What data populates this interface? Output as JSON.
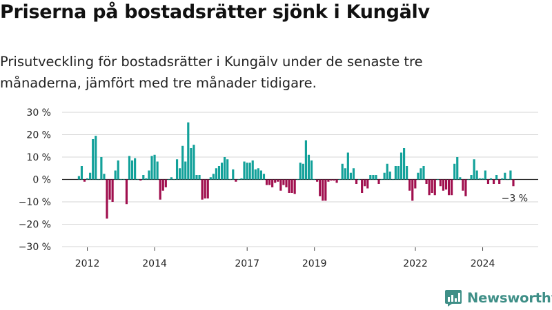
{
  "title": "Priserna på bostadsrätter sjönk i Kungälv",
  "subtitle": "Prisutveckling för bostadsrätter i Kungälv under de senaste tre månaderna, jämfört med tre månader tidigare.",
  "brand": {
    "name": "Newsworthy",
    "icon": "newsworthy-chart-icon"
  },
  "colors": {
    "positive": "#12a19a",
    "negative": "#a00f4e",
    "grid": "#d6d6d6",
    "zero_line": "#222222",
    "brand": "#3f8f87"
  },
  "chart_data": {
    "type": "bar",
    "y_tick_labels": [
      "30 %",
      "20 %",
      "10 %",
      "0 %",
      "−10 %",
      "−20 %",
      "−30 %"
    ],
    "y_ticks": [
      30,
      20,
      10,
      0,
      -10,
      -20,
      -30
    ],
    "ylim": [
      -30,
      30
    ],
    "x_tick_labels": [
      "2012",
      "2014",
      "2017",
      "2019",
      "2022",
      "2024"
    ],
    "x_ticks": [
      2012.0,
      2014.0,
      2016.75,
      2018.75,
      2021.75,
      2023.75
    ],
    "xlim": [
      2011.25,
      2025.4
    ],
    "start_year": 2011.75,
    "step": 0.0833,
    "values": [
      1.5,
      6,
      -1,
      0.5,
      3,
      18,
      19.5,
      0,
      10,
      2.5,
      -17.5,
      -9,
      -10,
      4,
      8.5,
      0,
      0,
      -11,
      10.5,
      8.5,
      9.5,
      0,
      -0.5,
      2,
      0.5,
      4,
      10.5,
      11,
      8,
      -9,
      -5,
      -3.5,
      0,
      1,
      0,
      9,
      5,
      15,
      8,
      25.5,
      14,
      15.5,
      2,
      2,
      -9,
      -8.5,
      -8.5,
      1,
      2.5,
      5,
      6,
      7.5,
      10,
      9,
      0,
      4.5,
      -1,
      0,
      0.5,
      8,
      7.5,
      7.5,
      8.5,
      4.5,
      5,
      4,
      2.5,
      -2.5,
      -2.5,
      -3.5,
      -1.5,
      -1,
      -5,
      -2.5,
      -3.5,
      -6,
      -6,
      -6.5,
      0,
      7.5,
      7,
      17.5,
      11,
      8.5,
      0,
      -1,
      -7.5,
      -9.5,
      -9.5,
      -1,
      -0.5,
      -0.5,
      -1.5,
      0,
      7,
      5,
      12,
      3,
      5,
      -2,
      0,
      -6,
      -3,
      -4,
      2,
      2,
      2,
      -2,
      0,
      3,
      7,
      3.5,
      0,
      6,
      6,
      12,
      14,
      6,
      -5,
      -9.5,
      -4,
      3,
      5,
      6,
      -2,
      -7,
      -6,
      -7,
      0,
      -3,
      -5,
      -4.5,
      -7,
      -7,
      7,
      10,
      1,
      -5,
      -7.5,
      0,
      2,
      9,
      4,
      0.5,
      0.5,
      4,
      -2,
      0.5,
      -2,
      2,
      -2,
      0.5,
      3,
      0,
      4,
      -3
    ],
    "annotations": [
      {
        "text": "−3 %"
      }
    ]
  }
}
